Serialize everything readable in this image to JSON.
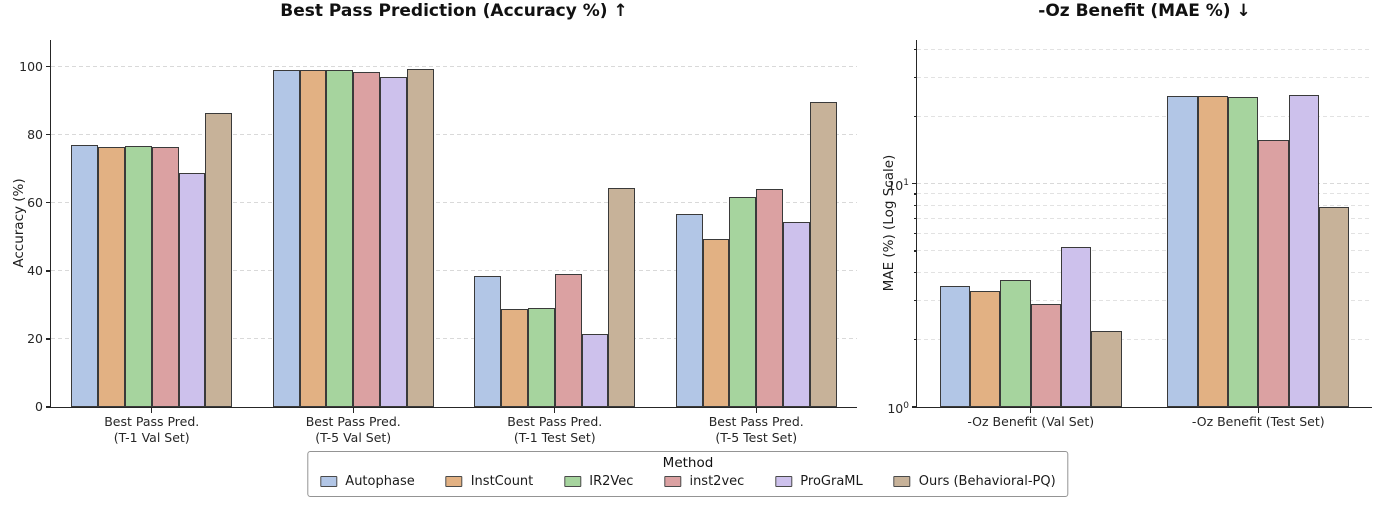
{
  "style": {
    "background": "#ffffff",
    "bar_edge": "#3a3a3a",
    "grid": "#d9d9d9",
    "spine": "#262626",
    "text": "#1c1c1c"
  },
  "legend": {
    "title": "Method",
    "entries": [
      {
        "label": "Autophase",
        "color": "#b2c6e6"
      },
      {
        "label": "InstCount",
        "color": "#e2b183"
      },
      {
        "label": "IR2Vec",
        "color": "#a6d49e"
      },
      {
        "label": "inst2vec",
        "color": "#dba1a2"
      },
      {
        "label": "ProGraML",
        "color": "#cdc1ec"
      },
      {
        "label": "Ours (Behavioral-PQ)",
        "color": "#c7b299"
      }
    ]
  },
  "chart_data": [
    {
      "type": "bar",
      "title": "Best Pass Prediction (Accuracy %) ↑",
      "ylabel": "Accuracy (%)",
      "xlabel": "",
      "yscale": "linear",
      "ylim": [
        0,
        107.8
      ],
      "grid": "dashed-horizontal",
      "yticks": [
        0,
        20,
        40,
        60,
        80,
        100
      ],
      "ytick_labels": [
        "0",
        "20",
        "40",
        "60",
        "80",
        "100"
      ],
      "categories": [
        "Best Pass Pred.\n(T-1 Val Set)",
        "Best Pass Pred.\n(T-5 Val Set)",
        "Best Pass Pred.\n(T-1 Test Set)",
        "Best Pass Pred.\n(T-5 Test Set)"
      ],
      "series": [
        {
          "name": "Autophase",
          "color": "#b2c6e6",
          "values": [
            77.0,
            99.1,
            38.5,
            56.8
          ]
        },
        {
          "name": "InstCount",
          "color": "#e2b183",
          "values": [
            76.3,
            98.9,
            28.8,
            49.3
          ]
        },
        {
          "name": "IR2Vec",
          "color": "#a6d49e",
          "values": [
            76.7,
            99.0,
            29.0,
            61.7
          ]
        },
        {
          "name": "inst2vec",
          "color": "#dba1a2",
          "values": [
            76.5,
            98.4,
            39.2,
            63.9
          ]
        },
        {
          "name": "ProGraML",
          "color": "#cdc1ec",
          "values": [
            68.7,
            96.9,
            21.5,
            54.4
          ]
        },
        {
          "name": "Ours (Behavioral-PQ)",
          "color": "#c7b299",
          "values": [
            86.5,
            99.3,
            64.3,
            89.6
          ]
        }
      ]
    },
    {
      "type": "bar",
      "title": "-Oz Benefit (MAE %) ↓",
      "ylabel": "MAE (%) (Log Scale)",
      "xlabel": "",
      "yscale": "log",
      "ylim": [
        1,
        44
      ],
      "grid": "dashed-horizontal",
      "yticks_major": [
        1,
        10
      ],
      "ytick_labels_major": [
        {
          "base": "10",
          "exp": "0"
        },
        {
          "base": "10",
          "exp": "1"
        }
      ],
      "yticks_minor": [
        2,
        3,
        4,
        5,
        6,
        7,
        8,
        9,
        20,
        30,
        40
      ],
      "categories": [
        "-Oz Benefit (Val Set)",
        "-Oz Benefit (Test Set)"
      ],
      "series": [
        {
          "name": "Autophase",
          "color": "#b2c6e6",
          "values": [
            3.5,
            24.8
          ]
        },
        {
          "name": "InstCount",
          "color": "#e2b183",
          "values": [
            3.3,
            24.8
          ]
        },
        {
          "name": "IR2Vec",
          "color": "#a6d49e",
          "values": [
            3.7,
            24.4
          ]
        },
        {
          "name": "inst2vec",
          "color": "#dba1a2",
          "values": [
            2.9,
            15.7
          ]
        },
        {
          "name": "ProGraML",
          "color": "#cdc1ec",
          "values": [
            5.2,
            24.9
          ]
        },
        {
          "name": "Ours (Behavioral-PQ)",
          "color": "#c7b299",
          "values": [
            2.2,
            7.9
          ]
        }
      ]
    }
  ]
}
